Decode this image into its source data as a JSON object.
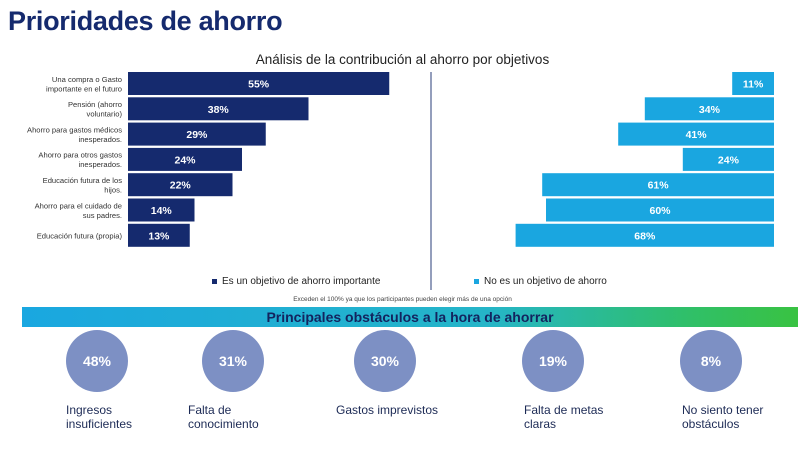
{
  "page_title": "Prioridades de ahorro",
  "chart_title": "Análisis de la contribución al ahorro por objetivos",
  "colors": {
    "important": "#152a6e",
    "not_important": "#1aa6e0",
    "circle": "#7d90c4",
    "divider": "#2a3d7a"
  },
  "chart_data": {
    "type": "bar",
    "orientation": "horizontal",
    "title": "Análisis de la contribución al ahorro por objetivos",
    "categories": [
      "Una compra o Gasto importante en el futuro",
      "Pensión (ahorro voluntario)",
      "Ahorro para gastos médicos inesperados.",
      "Ahorro para otros gastos inesperados.",
      "Educación futura de los hijos.",
      "Ahorro para el cuidado de sus padres.",
      "Educación futura (propia)"
    ],
    "series": [
      {
        "name": "Es un objetivo de ahorro importante",
        "values": [
          55,
          38,
          29,
          24,
          22,
          14,
          13
        ],
        "labels": [
          "55%",
          "38%",
          "29%",
          "24%",
          "22%",
          "14%",
          "13%"
        ]
      },
      {
        "name": "No es un objetivo de ahorro",
        "values": [
          11,
          34,
          41,
          24,
          61,
          60,
          68
        ],
        "labels": [
          "11%",
          "34%",
          "41%",
          "24%",
          "61%",
          "60%",
          "68%"
        ]
      }
    ],
    "xlim": [
      0,
      100
    ],
    "legend": "bottom"
  },
  "legend": {
    "important": "Es un objetivo de ahorro importante",
    "not_important": "No es un objetivo de ahorro"
  },
  "footnote": "Exceden el 100% ya que los participantes pueden elegir más de una opción",
  "banner_title": "Principales obstáculos a la hora de ahorrar",
  "obstacles": [
    {
      "pct": "48%",
      "label_lines": [
        "Ingresos",
        "insuficientes"
      ]
    },
    {
      "pct": "31%",
      "label_lines": [
        "Falta de",
        "conocimiento"
      ]
    },
    {
      "pct": "30%",
      "label_lines": [
        "Gastos imprevistos"
      ]
    },
    {
      "pct": "19%",
      "label_lines": [
        "Falta de metas",
        "claras"
      ]
    },
    {
      "pct": "8%",
      "label_lines": [
        "No siento tener",
        "obstáculos"
      ]
    }
  ]
}
